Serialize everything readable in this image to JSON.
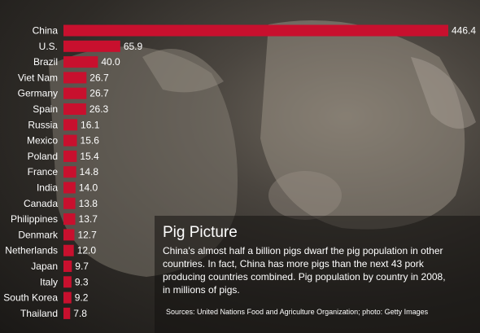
{
  "colors": {
    "bar": "#c8102e",
    "text": "#ffffff"
  },
  "chart_data": {
    "type": "bar",
    "orientation": "horizontal",
    "categories": [
      "China",
      "U.S.",
      "Brazil",
      "Viet Nam",
      "Germany",
      "Spain",
      "Russia",
      "Mexico",
      "Poland",
      "France",
      "India",
      "Canada",
      "Philippines",
      "Denmark",
      "Netherlands",
      "Japan",
      "Italy",
      "South Korea",
      "Thailand"
    ],
    "values": [
      446.4,
      65.9,
      40.0,
      26.7,
      26.7,
      26.3,
      16.1,
      15.6,
      15.4,
      14.8,
      14.0,
      13.8,
      13.7,
      12.7,
      12.0,
      9.7,
      9.3,
      9.2,
      7.8
    ],
    "value_labels": [
      "446.4",
      "65.9",
      "40.0",
      "26.7",
      "26.7",
      "26.3",
      "16.1",
      "15.6",
      "15.4",
      "14.8",
      "14.0",
      "13.8",
      "13.7",
      "12.7",
      "12.0",
      "9.7",
      "9.3",
      "9.2",
      "7.8"
    ],
    "title": "Pig Picture",
    "subtitle": "China's almost half a billion pigs dwarf the pig population in other countries. In fact, China has more pigs than the next 43 pork producing countries combined. Pig population by country in 2008, in millions of pigs.",
    "xlabel": "",
    "ylabel": "",
    "xlim": [
      0,
      446.4
    ],
    "grid": false,
    "legend": "none"
  },
  "source": "Sources: United Nations Food and Agriculture Organization; photo: Getty Images"
}
